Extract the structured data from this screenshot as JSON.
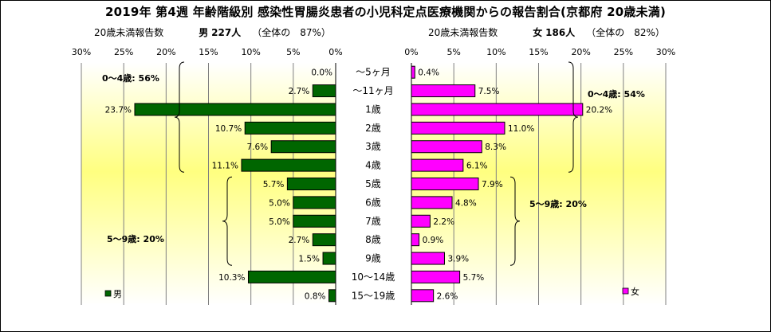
{
  "title": "2019年 第4週 年齢階級別 感染性胃腸炎患者の小児科定点医療機関からの報告割合(京都府 20歳未満)",
  "left_header": {
    "label": "20歳未満報告数",
    "gender": "男",
    "count": "227人",
    "share": "（全体の　87%）"
  },
  "right_header": {
    "label": "20歳未満報告数",
    "gender": "女",
    "count": "186人",
    "share": "（全体の　82%）"
  },
  "colors": {
    "male": "#006600",
    "female": "#ff00ff",
    "grid": "#808080",
    "bg_top": "#ffffd0",
    "bg_mid": "#ffff80"
  },
  "chart_data": [
    {
      "type": "bar",
      "orientation": "horizontal",
      "direction": "right-to-left",
      "series": [
        {
          "name": "男",
          "values": [
            0.0,
            2.7,
            23.7,
            10.7,
            7.6,
            11.1,
            5.7,
            5.0,
            5.0,
            2.7,
            1.5,
            10.3,
            0.8
          ]
        }
      ],
      "categories": [
        "～5ヶ月",
        "～11ヶ月",
        "1歳",
        "2歳",
        "3歳",
        "4歳",
        "5歳",
        "6歳",
        "7歳",
        "8歳",
        "9歳",
        "10～14歳",
        "15～19歳"
      ],
      "value_labels": [
        "0.0%",
        "2.7%",
        "23.7%",
        "10.7%",
        "7.6%",
        "11.1%",
        "5.7%",
        "5.0%",
        "5.0%",
        "2.7%",
        "1.5%",
        "10.3%",
        "0.8%"
      ],
      "xlim": [
        0,
        30
      ],
      "ticks": [
        "30%",
        "25%",
        "20%",
        "15%",
        "10%",
        "5%",
        "0%"
      ],
      "grid": true,
      "legend": "bottom-left",
      "groups": [
        {
          "label": "0～4歳: 56%"
        },
        {
          "label": "5～9歳: 20%"
        }
      ]
    },
    {
      "type": "bar",
      "orientation": "horizontal",
      "direction": "left-to-right",
      "series": [
        {
          "name": "女",
          "values": [
            0.4,
            7.5,
            20.2,
            11.0,
            8.3,
            6.1,
            7.9,
            4.8,
            2.2,
            0.9,
            3.9,
            5.7,
            2.6
          ]
        }
      ],
      "categories": [
        "～5ヶ月",
        "～11ヶ月",
        "1歳",
        "2歳",
        "3歳",
        "4歳",
        "5歳",
        "6歳",
        "7歳",
        "8歳",
        "9歳",
        "10～14歳",
        "15～19歳"
      ],
      "value_labels": [
        "0.4%",
        "7.5%",
        "20.2%",
        "11.0%",
        "8.3%",
        "6.1%",
        "7.9%",
        "4.8%",
        "2.2%",
        "0.9%",
        "3.9%",
        "5.7%",
        "2.6%"
      ],
      "xlim": [
        0,
        30
      ],
      "ticks": [
        "0%",
        "5%",
        "10%",
        "15%",
        "20%",
        "25%",
        "30%"
      ],
      "grid": true,
      "legend": "bottom-right",
      "groups": [
        {
          "label": "0～4歳: 54%"
        },
        {
          "label": "5～9歳: 20%"
        }
      ]
    }
  ]
}
